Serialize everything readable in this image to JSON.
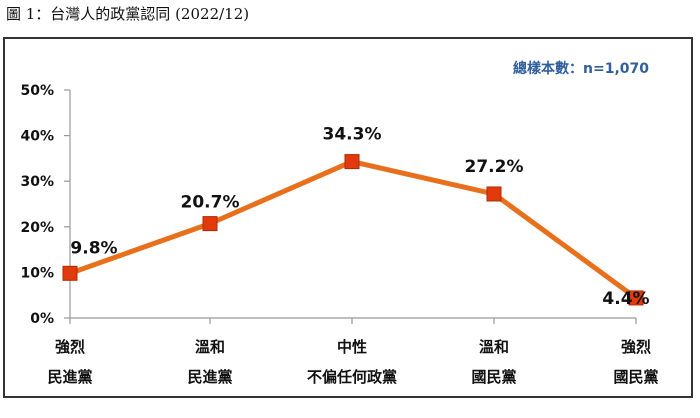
{
  "caption": "圖 1：台灣人的政黨認同 (2022/12)",
  "sample_note": "總樣本數：n=1,070",
  "colors": {
    "line": "#e8701c",
    "marker": "#e23a0c",
    "axis": "#999999"
  },
  "chart_data": {
    "type": "line",
    "categories": [
      [
        "強烈",
        "民進黨"
      ],
      [
        "溫和",
        "民進黨"
      ],
      [
        "中性",
        "不偏任何政黨"
      ],
      [
        "溫和",
        "國民黨"
      ],
      [
        "強烈",
        "國民黨"
      ]
    ],
    "values": [
      9.8,
      20.7,
      34.3,
      27.2,
      4.4
    ],
    "data_labels": [
      "9.8%",
      "20.7%",
      "34.3%",
      "27.2%",
      "4.4%"
    ],
    "y_ticks": [
      "0%",
      "10%",
      "20%",
      "30%",
      "40%",
      "50%"
    ],
    "ylim": [
      0,
      50
    ],
    "grid": false
  }
}
